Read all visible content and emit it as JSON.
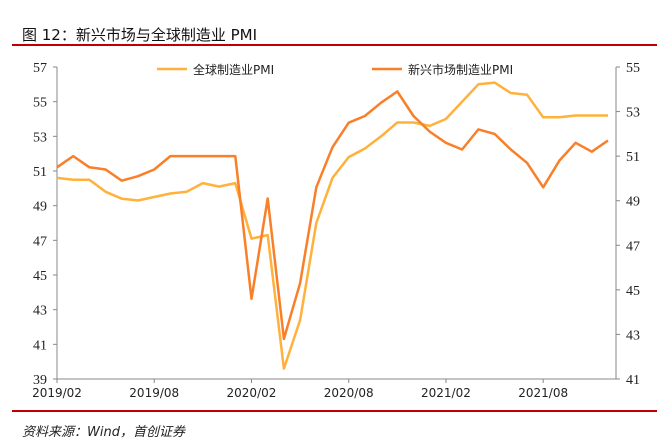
{
  "title": "图 12：新兴市场与全球制造业 PMI",
  "source": "资料来源：Wind，首创证券",
  "chart_data": {
    "type": "line",
    "x": [
      "2019/02",
      "2019/03",
      "2019/04",
      "2019/05",
      "2019/06",
      "2019/07",
      "2019/08",
      "2019/09",
      "2019/10",
      "2019/11",
      "2019/12",
      "2020/01",
      "2020/02",
      "2020/03",
      "2020/04",
      "2020/05",
      "2020/06",
      "2020/07",
      "2020/08",
      "2020/09",
      "2020/10",
      "2020/11",
      "2020/12",
      "2021/01",
      "2021/02",
      "2021/03",
      "2021/04",
      "2021/05",
      "2021/06",
      "2021/07",
      "2021/08",
      "2021/09",
      "2021/10",
      "2021/11",
      "2021/12"
    ],
    "xticks": [
      "2019/02",
      "2019/08",
      "2020/02",
      "2020/08",
      "2021/02",
      "2021/08"
    ],
    "left_axis": {
      "ylim": [
        39,
        57
      ],
      "ticks": [
        39,
        41,
        43,
        45,
        47,
        49,
        51,
        53,
        55,
        57
      ]
    },
    "right_axis": {
      "ylim": [
        41,
        55
      ],
      "ticks": [
        41,
        43,
        45,
        47,
        49,
        51,
        53,
        55
      ]
    },
    "series": [
      {
        "name": "全球制造业PMI",
        "axis": "left",
        "color": "#ffb13b",
        "values": [
          50.6,
          50.5,
          50.5,
          49.8,
          49.4,
          49.3,
          49.5,
          49.7,
          49.8,
          50.3,
          50.1,
          50.3,
          47.1,
          47.3,
          39.6,
          42.4,
          48.0,
          50.6,
          51.8,
          52.3,
          53.0,
          53.8,
          53.8,
          53.6,
          54.0,
          55.0,
          56.0,
          56.1,
          55.5,
          55.4,
          54.1,
          54.1,
          54.2,
          54.2,
          54.2
        ]
      },
      {
        "name": "新兴市场制造业PMI",
        "axis": "right",
        "color": "#f97f29",
        "values": [
          50.5,
          51.0,
          50.5,
          50.4,
          49.9,
          50.1,
          50.4,
          51.0,
          51.0,
          51.0,
          51.0,
          51.0,
          44.6,
          49.1,
          42.8,
          45.3,
          49.6,
          51.4,
          52.5,
          52.8,
          53.4,
          53.9,
          52.8,
          52.1,
          51.6,
          51.3,
          52.2,
          52.0,
          51.3,
          50.7,
          49.6,
          50.8,
          51.6,
          51.2,
          51.7
        ]
      }
    ],
    "legend": "top"
  }
}
